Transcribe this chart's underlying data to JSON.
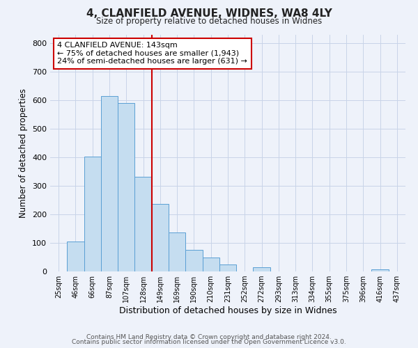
{
  "title": "4, CLANFIELD AVENUE, WIDNES, WA8 4LY",
  "subtitle": "Size of property relative to detached houses in Widnes",
  "xlabel": "Distribution of detached houses by size in Widnes",
  "ylabel": "Number of detached properties",
  "bar_labels": [
    "25sqm",
    "46sqm",
    "66sqm",
    "87sqm",
    "107sqm",
    "128sqm",
    "149sqm",
    "169sqm",
    "190sqm",
    "210sqm",
    "231sqm",
    "252sqm",
    "272sqm",
    "293sqm",
    "313sqm",
    "334sqm",
    "355sqm",
    "375sqm",
    "396sqm",
    "416sqm",
    "437sqm"
  ],
  "bar_values": [
    0,
    105,
    403,
    614,
    591,
    333,
    236,
    136,
    76,
    49,
    24,
    0,
    15,
    0,
    0,
    0,
    0,
    0,
    0,
    7,
    0
  ],
  "bar_color": "#c5ddf0",
  "bar_edge_color": "#5a9fd4",
  "vline_x": 5.5,
  "vline_color": "#cc0000",
  "annotation_title": "4 CLANFIELD AVENUE: 143sqm",
  "annotation_line1": "← 75% of detached houses are smaller (1,943)",
  "annotation_line2": "24% of semi-detached houses are larger (631) →",
  "annotation_box_facecolor": "#ffffff",
  "annotation_box_edge": "#cc0000",
  "ylim": [
    0,
    830
  ],
  "yticks": [
    0,
    100,
    200,
    300,
    400,
    500,
    600,
    700,
    800
  ],
  "grid_color": "#c8d4e8",
  "bg_color": "#eef2fa",
  "footer1": "Contains HM Land Registry data © Crown copyright and database right 2024.",
  "footer2": "Contains public sector information licensed under the Open Government Licence v3.0."
}
